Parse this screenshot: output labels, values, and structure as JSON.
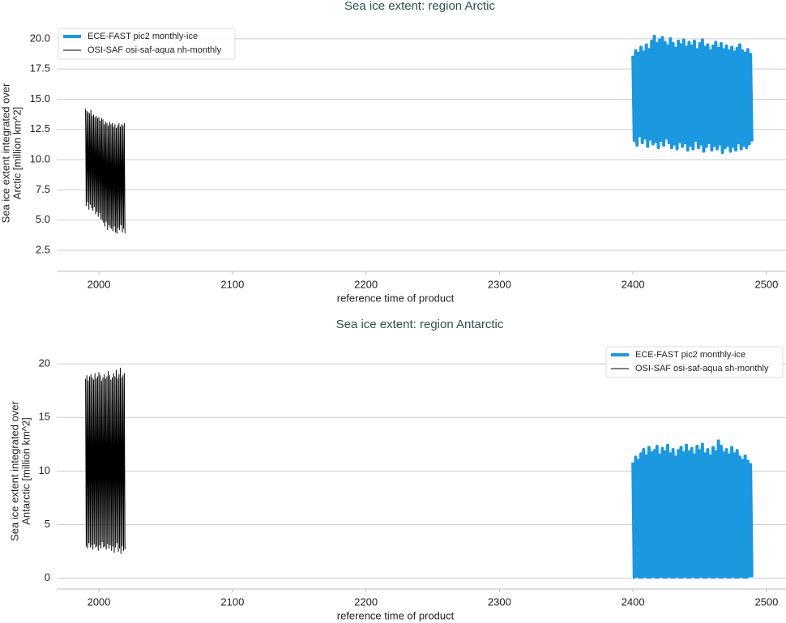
{
  "chart_data": [
    {
      "type": "line",
      "title": "Sea ice extent: region Arctic",
      "xlabel": "reference time of product",
      "ylabel": [
        "Sea ice extent integrated over",
        "Arctic [million km^2]"
      ],
      "xlim": [
        1968.4,
        2514.6
      ],
      "ylim": [
        0.75,
        21.4
      ],
      "xticks": [
        2000,
        2100,
        2200,
        2300,
        2400,
        2500
      ],
      "yticks": [
        2.5,
        {
          "value": 5,
          "label": "5.0"
        },
        7.5,
        {
          "value": 10,
          "label": "10.0"
        },
        12.5,
        {
          "value": 15,
          "label": "15.0"
        },
        17.5,
        {
          "value": 20,
          "label": "20.0"
        }
      ],
      "grid": true,
      "legend": "upper left",
      "series": [
        {
          "name": "ECE-FAST pic2 monthly-ice",
          "color": "#1b98e0",
          "linewidth": 4,
          "x": [
            2400,
            2401,
            2402,
            2403,
            2404,
            2405,
            2406,
            2407,
            2408,
            2409,
            2410,
            2411,
            2412,
            2413,
            2414,
            2415,
            2416,
            2417,
            2418,
            2419,
            2420,
            2421,
            2422,
            2423,
            2424,
            2425,
            2426,
            2427,
            2428,
            2429,
            2430,
            2431,
            2432,
            2433,
            2434,
            2435,
            2436,
            2437,
            2438,
            2439,
            2440,
            2441,
            2442,
            2443,
            2444,
            2445,
            2446,
            2447,
            2448,
            2449,
            2450,
            2451,
            2452,
            2453,
            2454,
            2455,
            2456,
            2457,
            2458,
            2459,
            2460,
            2461,
            2462,
            2463,
            2464,
            2465,
            2466,
            2467,
            2468,
            2469,
            2470,
            2471,
            2472,
            2473,
            2474,
            2475,
            2476,
            2477,
            2478,
            2479,
            2480,
            2481,
            2482,
            2483,
            2484,
            2485,
            2486,
            2487,
            2488,
            2489
          ],
          "values": [
            18.6,
            11.6,
            19.0,
            11.2,
            18.8,
            12.0,
            19.3,
            11.4,
            18.9,
            11.8,
            19.5,
            11.1,
            19.1,
            11.7,
            19.8,
            11.3,
            20.2,
            11.5,
            19.6,
            11.0,
            19.9,
            11.6,
            20.1,
            11.2,
            19.7,
            11.8,
            19.4,
            11.4,
            20.0,
            11.0,
            19.6,
            11.3,
            19.2,
            10.9,
            19.8,
            11.5,
            19.5,
            11.1,
            19.9,
            11.4,
            19.3,
            10.8,
            19.7,
            11.2,
            19.4,
            10.9,
            19.8,
            11.6,
            19.1,
            11.0,
            19.6,
            11.3,
            19.9,
            10.7,
            19.3,
            11.1,
            19.5,
            11.4,
            19.0,
            10.8,
            19.4,
            11.2,
            19.7,
            10.9,
            19.2,
            11.3,
            19.6,
            10.6,
            19.1,
            11.0,
            19.4,
            11.2,
            19.0,
            10.7,
            19.3,
            11.1,
            18.9,
            10.8,
            19.2,
            11.4,
            19.5,
            10.9,
            19.0,
            11.2,
            18.8,
            11.0,
            19.1,
            11.3,
            18.7,
            11.5
          ]
        },
        {
          "name": "OSI-SAF osi-saf-aqua nh-monthly",
          "color": "#000000",
          "linewidth": 1,
          "x": [
            1990,
            1990.5,
            1991,
            1991.5,
            1992,
            1992.5,
            1993,
            1993.5,
            1994,
            1994.5,
            1995,
            1995.5,
            1996,
            1996.5,
            1997,
            1997.5,
            1998,
            1998.5,
            1999,
            1999.5,
            2000,
            2000.5,
            2001,
            2001.5,
            2002,
            2002.5,
            2003,
            2003.5,
            2004,
            2004.5,
            2005,
            2005.5,
            2006,
            2006.5,
            2007,
            2007.5,
            2008,
            2008.5,
            2009,
            2009.5,
            2010,
            2010.5,
            2011,
            2011.5,
            2012,
            2012.5,
            2013,
            2013.5,
            2014,
            2014.5,
            2015,
            2015.5,
            2016,
            2016.5,
            2017,
            2017.5,
            2018,
            2018.5,
            2019,
            2019.5
          ],
          "values": [
            14.2,
            6.2,
            14.0,
            6.5,
            13.9,
            5.9,
            13.8,
            6.3,
            14.1,
            6.0,
            13.6,
            5.8,
            13.7,
            6.1,
            13.5,
            5.5,
            13.6,
            5.7,
            13.4,
            5.3,
            13.5,
            5.6,
            13.2,
            5.1,
            13.4,
            5.0,
            13.3,
            4.8,
            12.9,
            4.5,
            13.1,
            4.9,
            13.0,
            4.2,
            12.8,
            4.6,
            13.1,
            4.4,
            12.9,
            4.3,
            13.0,
            4.1,
            12.7,
            4.5,
            12.9,
            4.0,
            12.6,
            3.9,
            12.8,
            4.4,
            13.0,
            4.2,
            12.7,
            4.6,
            12.9,
            4.0,
            12.8,
            4.3,
            13.0,
            3.9
          ]
        }
      ]
    },
    {
      "type": "line",
      "title": "Sea ice extent: region Antarctic",
      "xlabel": "reference time of product",
      "ylabel": [
        "Sea ice extent integrated over",
        "Antarctic [million km^2]"
      ],
      "xlim": [
        1968.4,
        2514.6
      ],
      "ylim": [
        -1,
        22.2
      ],
      "xticks": [
        2000,
        2100,
        2200,
        2300,
        2400,
        2500
      ],
      "yticks": [
        0,
        5,
        10,
        15,
        20
      ],
      "grid": true,
      "legend": "upper right",
      "series": [
        {
          "name": "ECE-FAST pic2 monthly-ice",
          "color": "#1b98e0",
          "linewidth": 4,
          "x": [
            2400,
            2401,
            2402,
            2403,
            2404,
            2405,
            2406,
            2407,
            2408,
            2409,
            2410,
            2411,
            2412,
            2413,
            2414,
            2415,
            2416,
            2417,
            2418,
            2419,
            2420,
            2421,
            2422,
            2423,
            2424,
            2425,
            2426,
            2427,
            2428,
            2429,
            2430,
            2431,
            2432,
            2433,
            2434,
            2435,
            2436,
            2437,
            2438,
            2439,
            2440,
            2441,
            2442,
            2443,
            2444,
            2445,
            2446,
            2447,
            2448,
            2449,
            2450,
            2451,
            2452,
            2453,
            2454,
            2455,
            2456,
            2457,
            2458,
            2459,
            2460,
            2461,
            2462,
            2463,
            2464,
            2465,
            2466,
            2467,
            2468,
            2469,
            2470,
            2471,
            2472,
            2473,
            2474,
            2475,
            2476,
            2477,
            2478,
            2479,
            2480,
            2481,
            2482,
            2483,
            2484,
            2485,
            2486,
            2487,
            2488,
            2489
          ],
          "values": [
            10.8,
            0.1,
            11.3,
            0.2,
            11.0,
            0.1,
            11.6,
            0.1,
            12.0,
            0.2,
            11.4,
            0.1,
            12.2,
            0.1,
            11.7,
            0.2,
            11.9,
            0.1,
            12.3,
            0.1,
            11.5,
            0.2,
            12.1,
            0.1,
            11.8,
            0.1,
            12.4,
            0.2,
            11.6,
            0.1,
            12.0,
            0.1,
            11.3,
            0.2,
            11.9,
            0.1,
            12.2,
            0.1,
            11.7,
            0.2,
            12.4,
            0.1,
            11.8,
            0.1,
            12.1,
            0.2,
            11.5,
            0.1,
            12.3,
            0.1,
            11.9,
            0.2,
            12.5,
            0.1,
            11.6,
            0.1,
            12.0,
            0.2,
            11.4,
            0.1,
            12.2,
            0.1,
            11.8,
            0.2,
            12.8,
            0.1,
            12.3,
            0.1,
            11.7,
            0.2,
            12.0,
            0.1,
            11.5,
            0.1,
            12.2,
            0.2,
            11.6,
            0.1,
            11.9,
            0.1,
            11.3,
            0.2,
            11.0,
            0.1,
            11.4,
            0.1,
            10.9,
            0.2,
            10.6,
            0.1
          ]
        },
        {
          "name": "OSI-SAF osi-saf-aqua sh-monthly",
          "color": "#000000",
          "linewidth": 1,
          "x": [
            1990,
            1990.5,
            1991,
            1991.5,
            1992,
            1992.5,
            1993,
            1993.5,
            1994,
            1994.5,
            1995,
            1995.5,
            1996,
            1996.5,
            1997,
            1997.5,
            1998,
            1998.5,
            1999,
            1999.5,
            2000,
            2000.5,
            2001,
            2001.5,
            2002,
            2002.5,
            2003,
            2003.5,
            2004,
            2004.5,
            2005,
            2005.5,
            2006,
            2006.5,
            2007,
            2007.5,
            2008,
            2008.5,
            2009,
            2009.5,
            2010,
            2010.5,
            2011,
            2011.5,
            2012,
            2012.5,
            2013,
            2013.5,
            2014,
            2014.5,
            2015,
            2015.5,
            2016,
            2016.5,
            2017,
            2017.5,
            2018,
            2018.5,
            2019,
            2019.5
          ],
          "values": [
            18.6,
            3.0,
            18.9,
            2.8,
            18.4,
            3.3,
            18.8,
            2.9,
            19.0,
            3.1,
            18.7,
            2.7,
            18.5,
            3.2,
            19.1,
            2.9,
            18.6,
            3.0,
            18.8,
            2.6,
            19.2,
            3.1,
            18.9,
            2.8,
            18.4,
            3.4,
            18.7,
            2.9,
            19.0,
            3.0,
            18.6,
            2.7,
            18.8,
            3.2,
            19.3,
            2.8,
            18.9,
            3.1,
            18.5,
            2.6,
            18.7,
            3.0,
            19.1,
            2.4,
            18.8,
            2.9,
            19.4,
            3.3,
            18.6,
            2.5,
            19.0,
            2.8,
            19.6,
            2.3,
            18.7,
            3.0,
            18.9,
            2.6,
            19.1,
            2.7
          ]
        }
      ]
    }
  ]
}
